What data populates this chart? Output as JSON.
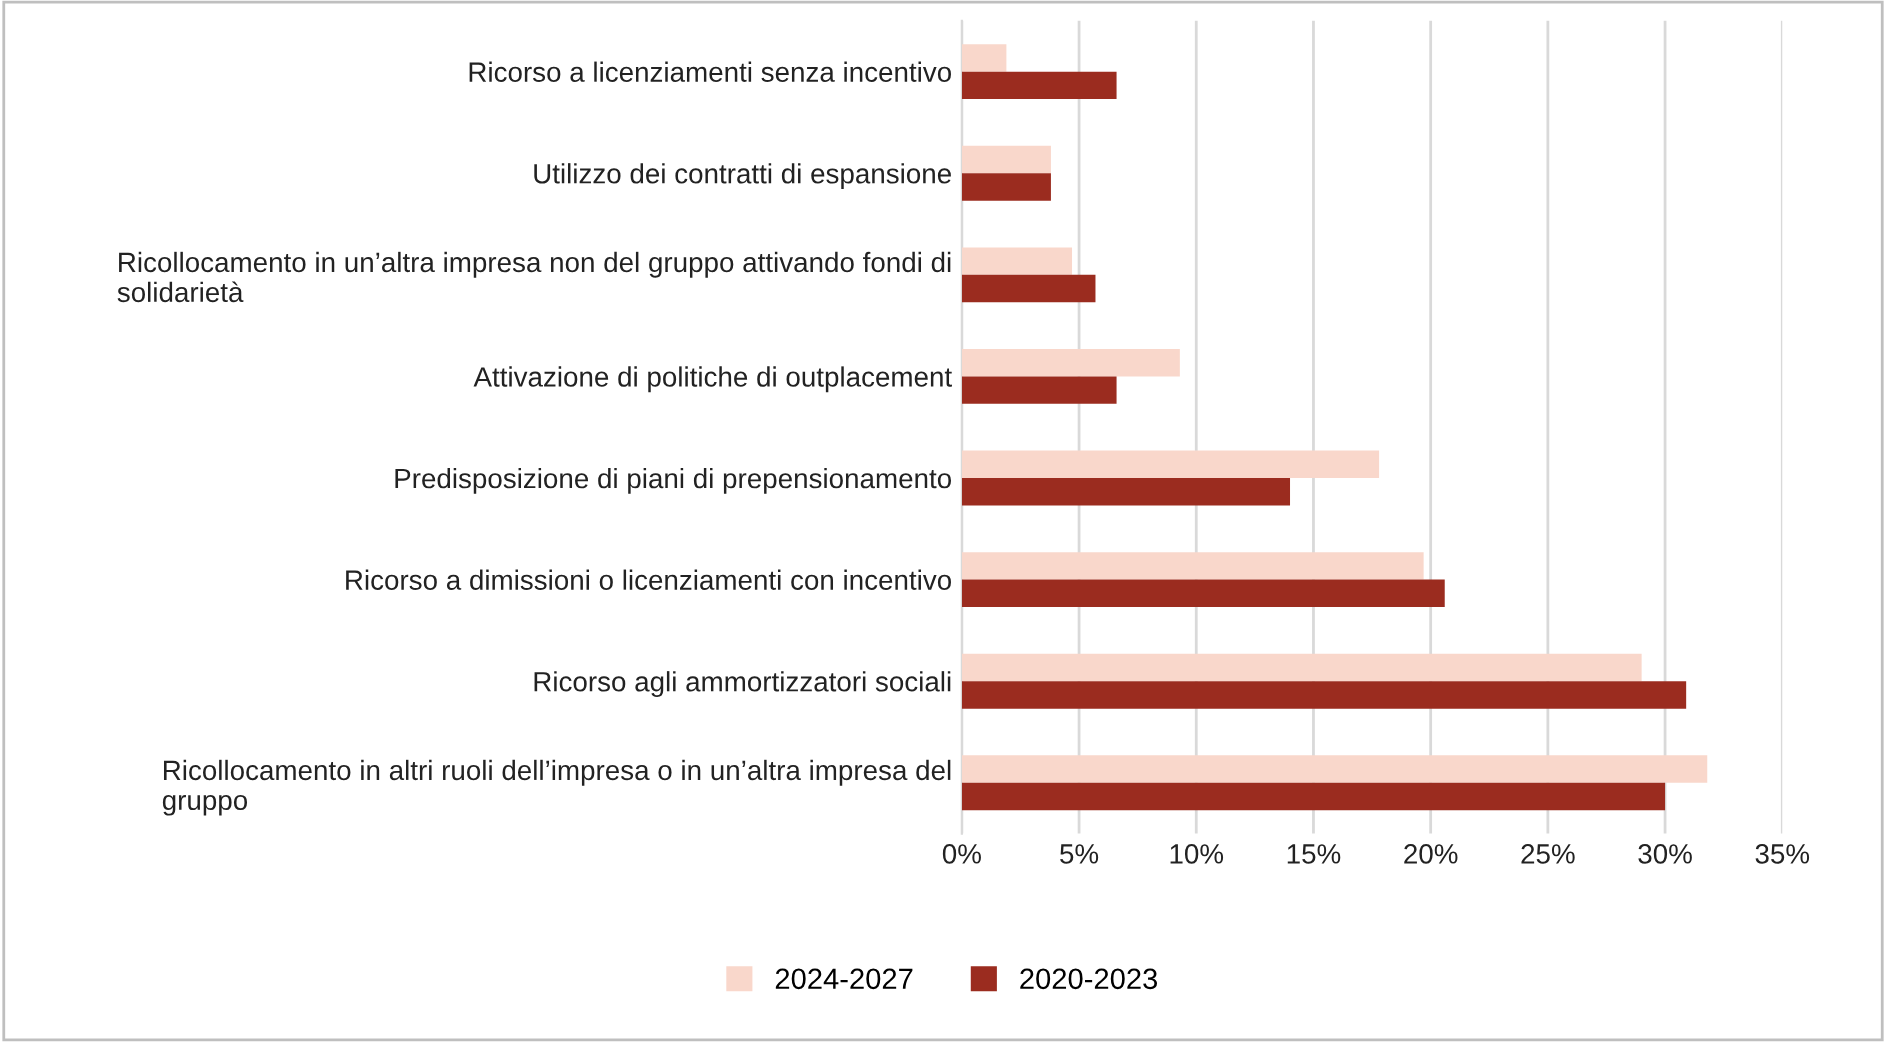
{
  "chart_data": {
    "type": "bar",
    "orientation": "horizontal",
    "categories": [
      "Ricorso a licenziamenti senza incentivo",
      "Utilizzo dei contratti di espansione",
      "Ricollocamento in un’altra impresa non del gruppo attivando fondi di solidarietà",
      "Attivazione di politiche di outplacement",
      "Predisposizione di piani di prepensionamento",
      "Ricorso a dimissioni o licenziamenti con incentivo",
      "Ricorso agli ammortizzatori sociali",
      "Ricollocamento in altri ruoli dell’impresa o in un’altra impresa del gruppo"
    ],
    "series": [
      {
        "name": "2024-2027",
        "color": "#f9d7cb",
        "values": [
          1.9,
          3.8,
          4.7,
          9.3,
          17.8,
          19.7,
          29.0,
          31.8
        ]
      },
      {
        "name": "2020-2023",
        "color": "#9b2c1f",
        "values": [
          6.6,
          3.8,
          5.7,
          6.6,
          14.0,
          20.6,
          30.9,
          30.0
        ]
      }
    ],
    "xlim": [
      0,
      35
    ],
    "xticks": [
      {
        "value": 0,
        "label": "0%"
      },
      {
        "value": 5,
        "label": "5%"
      },
      {
        "value": 10,
        "label": "10%"
      },
      {
        "value": 15,
        "label": "15%"
      },
      {
        "value": 20,
        "label": "20%"
      },
      {
        "value": 25,
        "label": "25%"
      },
      {
        "value": 30,
        "label": "30%"
      },
      {
        "value": 35,
        "label": "35%"
      }
    ],
    "grid": "x",
    "legend": "bottom"
  }
}
